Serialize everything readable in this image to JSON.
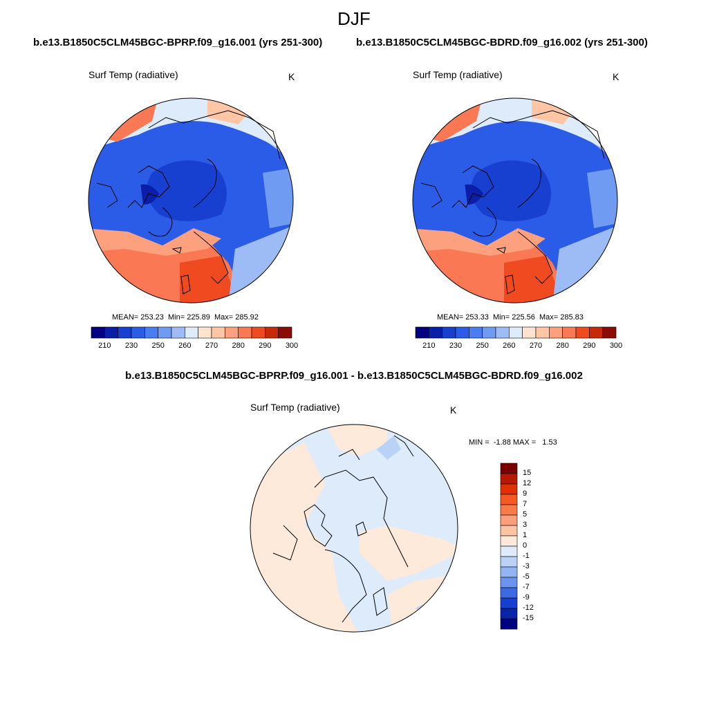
{
  "title": "DJF",
  "runs": {
    "left": "b.e13.B1850C5CLM45BGC-BPRP.f09_g16.001 (yrs 251-300)",
    "right": "b.e13.B1850C5CLM45BGC-BDRD.f09_g16.002 (yrs 251-300)"
  },
  "panels": {
    "left": {
      "variable": "Surf Temp (radiative)",
      "units": "K",
      "stats": "MEAN= 253.23  Min= 225.89  Max= 285.92"
    },
    "right": {
      "variable": "Surf Temp (radiative)",
      "units": "K",
      "stats": "MEAN= 253.33  Min= 225.56  Max= 285.83"
    },
    "diff": {
      "title": "b.e13.B1850C5CLM45BGC-BPRP.f09_g16.001 - b.e13.B1850C5CLM45BGC-BDRD.f09_g16.002",
      "variable": "Surf Temp (radiative)",
      "units": "K",
      "stats": "MIN =  -1.88 MAX =   1.53"
    }
  },
  "colorbars": {
    "absolute": {
      "labels": [
        "210",
        "230",
        "250",
        "260",
        "270",
        "280",
        "290",
        "300"
      ],
      "colors": [
        "#000080",
        "#0a1ea8",
        "#1840d0",
        "#2a5ce8",
        "#4a7ef0",
        "#6f9cf2",
        "#9dbcf5",
        "#ddebfb",
        "#ffe3cd",
        "#ffc6a5",
        "#fca07d",
        "#fa7853",
        "#f04a20",
        "#c82a08",
        "#8a0c04"
      ]
    },
    "diff": {
      "labels": [
        "15",
        "12",
        "9",
        "7",
        "5",
        "3",
        "1",
        "0",
        "-1",
        "-3",
        "-5",
        "-7",
        "-9",
        "-12",
        "-15"
      ],
      "colors": [
        "#7a0000",
        "#b51a00",
        "#e03000",
        "#f45a22",
        "#fa7a48",
        "#fca07a",
        "#fec3a3",
        "#feeadb",
        "#deebfb",
        "#bad2f6",
        "#93b6f2",
        "#6a94ee",
        "#3c6ae4",
        "#1840d0",
        "#0a24a8",
        "#000080"
      ]
    }
  }
}
